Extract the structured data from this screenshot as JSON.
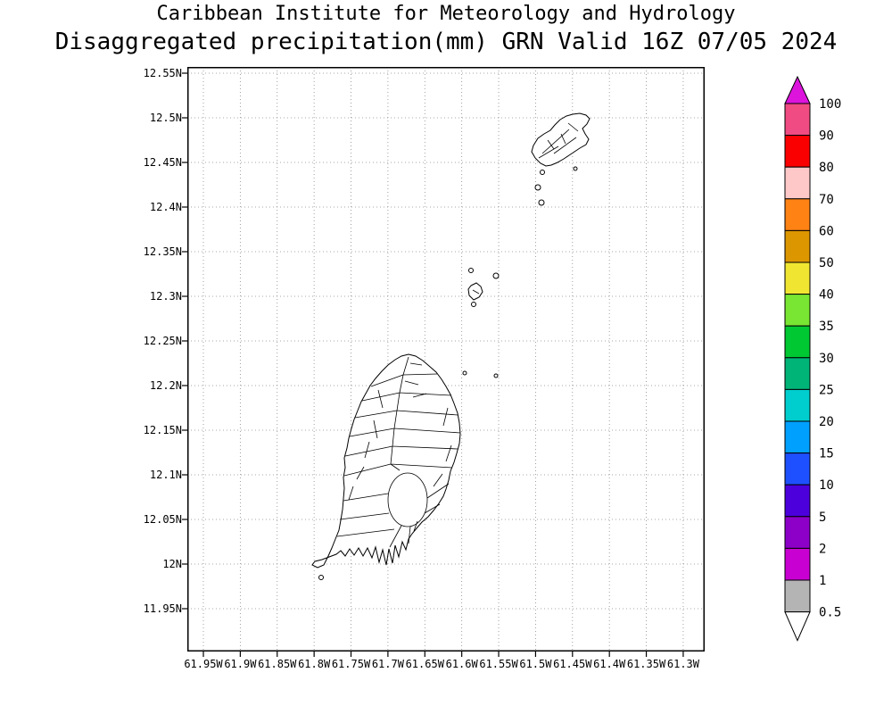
{
  "header": {
    "line1": "Caribbean Institute for Meteorology and Hydrology",
    "line2": "Disaggregated precipitation(mm) GRN Valid 16Z 07/05 2024"
  },
  "axes": {
    "lat_ticks": [
      "12.55N",
      "12.5N",
      "12.45N",
      "12.4N",
      "12.35N",
      "12.3N",
      "12.25N",
      "12.2N",
      "12.15N",
      "12.1N",
      "12.05N",
      "12N",
      "11.95N"
    ],
    "lon_ticks": [
      "61.95W",
      "61.9W",
      "61.85W",
      "61.8W",
      "61.75W",
      "61.7W",
      "61.65W",
      "61.6W",
      "61.55W",
      "61.5W",
      "61.45W",
      "61.4W",
      "61.35W",
      "61.3W"
    ]
  },
  "colorbar": {
    "tick_labels": [
      "100",
      "90",
      "80",
      "70",
      "60",
      "50",
      "40",
      "35",
      "30",
      "25",
      "20",
      "15",
      "10",
      "5",
      "2",
      "1",
      "0.5"
    ],
    "above_max_color": "#dc14dc",
    "below_min_color": "#ffffff",
    "segment_colors_top_to_bottom": [
      "#f04b82",
      "#fa0000",
      "#ffc8c8",
      "#ff8214",
      "#dc9600",
      "#f0e632",
      "#78e632",
      "#00c832",
      "#00b478",
      "#00cdcd",
      "#00a0ff",
      "#1e50ff",
      "#4b00dc",
      "#8c00c8",
      "#c800d2",
      "#b4b4b4"
    ]
  },
  "chart_data": {
    "type": "map",
    "organization": "Caribbean Institute for Meteorology and Hydrology",
    "title": "Disaggregated precipitation(mm) GRN Valid 16Z 07/05 2024",
    "variable": "Disaggregated precipitation",
    "units": "mm",
    "region_code": "GRN",
    "valid_time": "16Z 07/05 2024",
    "lat_axis_range": [
      "11.95N",
      "12.55N"
    ],
    "lon_axis_range": [
      "61.95W",
      "61.3W"
    ],
    "colorbar_levels": [
      0.5,
      1,
      2,
      5,
      10,
      15,
      20,
      25,
      30,
      35,
      40,
      50,
      60,
      70,
      80,
      90,
      100
    ],
    "shaded_precipitation_visible": "none (entire map area unshaded / below 0.5 mm)"
  }
}
